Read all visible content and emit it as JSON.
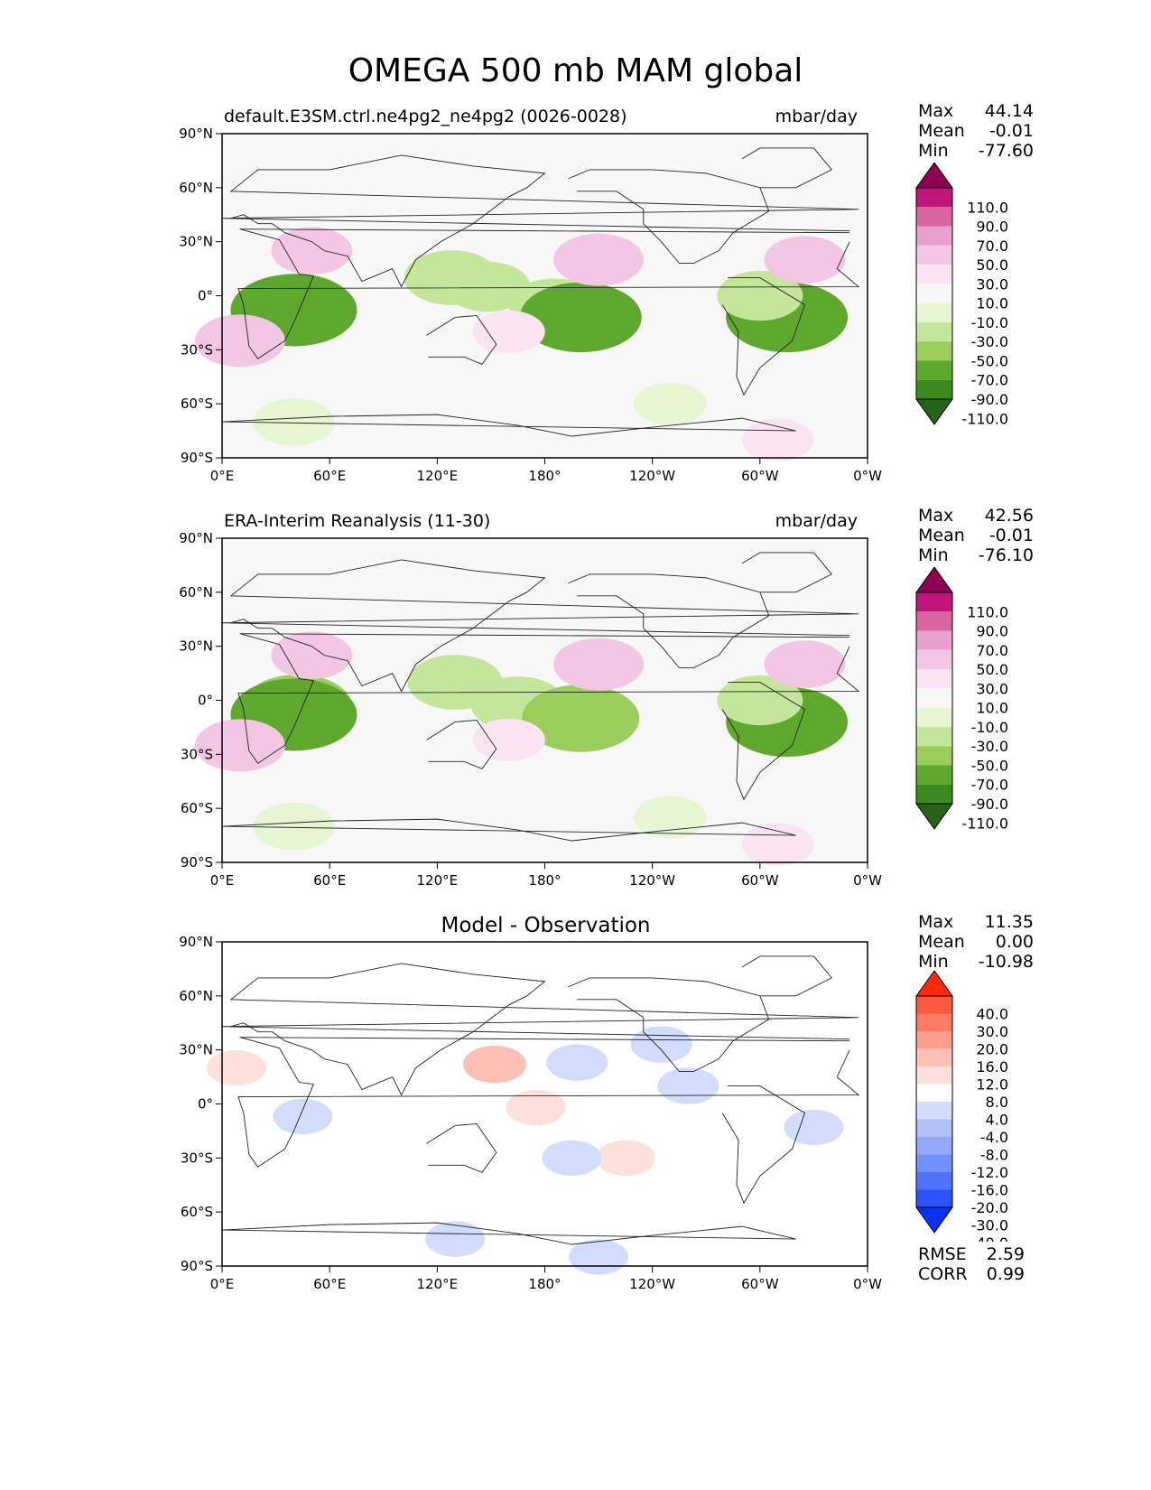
{
  "figure": {
    "title": "OMEGA 500 mb MAM global"
  },
  "colors": {
    "omega_levels": [
      "#276419",
      "#3d8b1f",
      "#5ea82d",
      "#9acd5b",
      "#c4e69a",
      "#e6f5d2",
      "#f7f7f7",
      "#fbe4f1",
      "#f3c6e3",
      "#e8a1cf",
      "#d7639f",
      "#c0167a",
      "#8e0152"
    ],
    "diff_levels": [
      "#0a30ff",
      "#2a52ff",
      "#4f72ff",
      "#7290fb",
      "#93a8f7",
      "#b2c0f7",
      "#d2dcfc",
      "#ffffff",
      "#fde0da",
      "#fdc0b2",
      "#fd9f8b",
      "#fd7c63",
      "#ff5a3d",
      "#ff2a0d"
    ]
  },
  "chart_data": [
    {
      "type": "heatmap",
      "panel": "test",
      "title_left": "default.E3SM.ctrl.ne4pg2_ne4pg2 (0026-0028)",
      "title_right": "mbar/day",
      "stats": {
        "max_label": "Max",
        "max": "44.14",
        "mean_label": "Mean",
        "mean": "-0.01",
        "min_label": "Min",
        "min": "-77.60"
      },
      "x_ticks": [
        "0°E",
        "60°E",
        "120°E",
        "180°",
        "120°W",
        "60°W",
        "0°W"
      ],
      "y_ticks": [
        "90°N",
        "60°N",
        "30°N",
        "0°",
        "30°S",
        "60°S",
        "90°S"
      ],
      "xlim": [
        0,
        360
      ],
      "ylim": [
        -90,
        90
      ],
      "colorbar_ticks": [
        "110.0",
        "90.0",
        "70.0",
        "50.0",
        "30.0",
        "10.0",
        "-10.0",
        "-30.0",
        "-50.0",
        "-70.0",
        "-90.0",
        "-110.0"
      ],
      "regions": [
        {
          "lon": 42,
          "lat": -5,
          "value": -60
        },
        {
          "lon": 40,
          "lat": -8,
          "value": -80
        },
        {
          "lon": 128,
          "lat": 10,
          "value": -45
        },
        {
          "lon": 148,
          "lat": 5,
          "value": -35
        },
        {
          "lon": 185,
          "lat": -5,
          "value": -40
        },
        {
          "lon": 200,
          "lat": -12,
          "value": -75
        },
        {
          "lon": 315,
          "lat": -12,
          "value": -75
        },
        {
          "lon": 300,
          "lat": 0,
          "value": -35
        },
        {
          "lon": 50,
          "lat": 25,
          "value": 30
        },
        {
          "lon": 10,
          "lat": -25,
          "value": 40
        },
        {
          "lon": 160,
          "lat": -20,
          "value": 20
        },
        {
          "lon": 210,
          "lat": 20,
          "value": 40
        },
        {
          "lon": 325,
          "lat": 20,
          "value": 30
        },
        {
          "lon": 40,
          "lat": -70,
          "value": -30
        },
        {
          "lon": 250,
          "lat": -60,
          "value": -20
        },
        {
          "lon": 310,
          "lat": -80,
          "value": 20
        }
      ]
    },
    {
      "type": "heatmap",
      "panel": "reference",
      "title_left": "ERA-Interim Reanalysis (11-30)",
      "title_right": "mbar/day",
      "stats": {
        "max_label": "Max",
        "max": "42.56",
        "mean_label": "Mean",
        "mean": "-0.01",
        "min_label": "Min",
        "min": "-76.10"
      },
      "x_ticks": [
        "0°E",
        "60°E",
        "120°E",
        "180°",
        "120°W",
        "60°W",
        "0°W"
      ],
      "y_ticks": [
        "90°N",
        "60°N",
        "30°N",
        "0°",
        "30°S",
        "60°S",
        "90°S"
      ],
      "xlim": [
        0,
        360
      ],
      "ylim": [
        -90,
        90
      ],
      "colorbar_ticks": [
        "110.0",
        "90.0",
        "70.0",
        "50.0",
        "30.0",
        "10.0",
        "-10.0",
        "-30.0",
        "-50.0",
        "-70.0",
        "-90.0",
        "-110.0"
      ],
      "regions": [
        {
          "lon": 42,
          "lat": -3,
          "value": -60
        },
        {
          "lon": 40,
          "lat": -8,
          "value": -80
        },
        {
          "lon": 130,
          "lat": 10,
          "value": -45
        },
        {
          "lon": 165,
          "lat": -2,
          "value": -45
        },
        {
          "lon": 200,
          "lat": -10,
          "value": -70
        },
        {
          "lon": 315,
          "lat": -12,
          "value": -75
        },
        {
          "lon": 300,
          "lat": 0,
          "value": -35
        },
        {
          "lon": 50,
          "lat": 25,
          "value": 30
        },
        {
          "lon": 10,
          "lat": -25,
          "value": 40
        },
        {
          "lon": 160,
          "lat": -22,
          "value": 20
        },
        {
          "lon": 210,
          "lat": 20,
          "value": 40
        },
        {
          "lon": 325,
          "lat": 20,
          "value": 30
        },
        {
          "lon": 40,
          "lat": -70,
          "value": -30
        },
        {
          "lon": 250,
          "lat": -65,
          "value": -20
        },
        {
          "lon": 310,
          "lat": -80,
          "value": 20
        }
      ]
    },
    {
      "type": "heatmap",
      "panel": "difference",
      "title_center": "Model - Observation",
      "stats": {
        "max_label": "Max",
        "max": "11.35",
        "mean_label": "Mean",
        "mean": "0.00",
        "min_label": "Min",
        "min": "-10.98"
      },
      "metrics": {
        "rmse_label": "RMSE",
        "rmse": "2.59",
        "corr_label": "CORR",
        "corr": "0.99"
      },
      "x_ticks": [
        "0°E",
        "60°E",
        "120°E",
        "180°",
        "120°W",
        "60°W",
        "0°W"
      ],
      "y_ticks": [
        "90°N",
        "60°N",
        "30°N",
        "0°",
        "30°S",
        "60°S",
        "90°S"
      ],
      "xlim": [
        0,
        360
      ],
      "ylim": [
        -90,
        90
      ],
      "colorbar_ticks": [
        "40.0",
        "30.0",
        "20.0",
        "16.0",
        "12.0",
        "8.0",
        "4.0",
        "-4.0",
        "-8.0",
        "-12.0",
        "-16.0",
        "-20.0",
        "-30.0",
        "-40.0"
      ],
      "regions": [
        {
          "lon": 152,
          "lat": 22,
          "value": 10
        },
        {
          "lon": 198,
          "lat": 23,
          "value": -8
        },
        {
          "lon": 245,
          "lat": 33,
          "value": -8
        },
        {
          "lon": 8,
          "lat": 20,
          "value": 6
        },
        {
          "lon": 45,
          "lat": -7,
          "value": -6
        },
        {
          "lon": 225,
          "lat": -30,
          "value": 6
        },
        {
          "lon": 195,
          "lat": -30,
          "value": -6
        },
        {
          "lon": 260,
          "lat": 10,
          "value": -8
        },
        {
          "lon": 130,
          "lat": -75,
          "value": -6
        },
        {
          "lon": 210,
          "lat": -85,
          "value": -6
        },
        {
          "lon": 175,
          "lat": -2,
          "value": 6
        },
        {
          "lon": 330,
          "lat": -13,
          "value": -6
        }
      ]
    }
  ]
}
